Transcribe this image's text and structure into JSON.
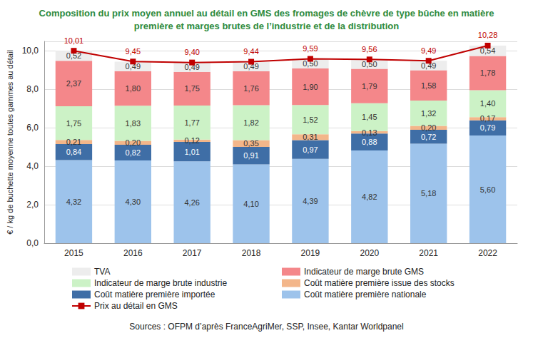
{
  "chart_data": {
    "type": "bar",
    "title": "Composition du prix moyen annuel au détail en GMS des fromages de chèvre de type bûche en matière\npremière et marges brutes de l’industrie et de la distribution",
    "y_label": "€ / kg de buchette moyenne toutes gammes au détail",
    "annotation": "Sources : OFPM d’après FranceAgriMer, SSP, Insee, Kantar Worldpanel",
    "categories": [
      "2015",
      "2016",
      "2017",
      "2018",
      "2019",
      "2020",
      "2021",
      "2022"
    ],
    "stacked": true,
    "data_labels": true,
    "grid": true,
    "legend": "bottom",
    "ylim": [
      0,
      10.5
    ],
    "yticks": [
      {
        "value": 0,
        "label": "0,0"
      },
      {
        "value": 2,
        "label": "2,0"
      },
      {
        "value": 4,
        "label": "4,0"
      },
      {
        "value": 6,
        "label": "6,0"
      },
      {
        "value": 8,
        "label": "8,0"
      },
      {
        "value": 10,
        "label": "10,0"
      }
    ],
    "series": [
      {
        "name": "Coût matière première nationale",
        "type": "bar",
        "color": "#9dc3eb",
        "values": [
          4.32,
          4.3,
          4.26,
          4.1,
          4.39,
          4.82,
          5.18,
          5.6
        ],
        "value_labels": [
          "4,32",
          "4,30",
          "4,26",
          "4,10",
          "4,39",
          "4,82",
          "5,18",
          "5,60"
        ]
      },
      {
        "name": "Coût matière première importée",
        "type": "bar",
        "color": "#3f6ea6",
        "values": [
          0.84,
          0.82,
          1.01,
          0.91,
          0.97,
          0.88,
          0.72,
          0.79
        ],
        "value_labels": [
          "0,84",
          "0,82",
          "1,01",
          "0,91",
          "0,97",
          "0,88",
          "0,72",
          "0,79"
        ]
      },
      {
        "name": "Coût matière première issue des stocks",
        "type": "bar",
        "color": "#f3b68a",
        "values": [
          0.21,
          0.2,
          0.12,
          0.35,
          0.31,
          0.13,
          0.2,
          0.17
        ],
        "value_labels": [
          "0,21",
          "0,20",
          "0,12",
          "0,35",
          "0,31",
          "0,13",
          "0,20",
          "0,17"
        ]
      },
      {
        "name": "Indicateur de marge brute industrie",
        "type": "bar",
        "color": "#ccf2c6",
        "values": [
          1.75,
          1.83,
          1.77,
          1.82,
          1.52,
          1.45,
          1.32,
          1.4
        ],
        "value_labels": [
          "1,75",
          "1,83",
          "1,77",
          "1,82",
          "1,52",
          "1,45",
          "1,32",
          "1,40"
        ]
      },
      {
        "name": "Indicateur de marge brute GMS",
        "type": "bar",
        "color": "#f4878a",
        "values": [
          2.37,
          1.8,
          1.75,
          1.76,
          1.9,
          1.79,
          1.58,
          1.78
        ],
        "value_labels": [
          "2,37",
          "1,80",
          "1,75",
          "1,76",
          "1,90",
          "1,79",
          "1,58",
          "1,78"
        ]
      },
      {
        "name": "TVA",
        "type": "bar",
        "color": "#ededed",
        "values": [
          0.52,
          0.49,
          0.49,
          0.49,
          0.5,
          0.5,
          0.49,
          0.54
        ],
        "value_labels": [
          "0,52",
          "0,49",
          "0,49",
          "0,49",
          "0,50",
          "0,50",
          "0,49",
          "0,54"
        ]
      },
      {
        "name": "Prix au détail en GMS",
        "type": "line",
        "color": "#c00000",
        "marker": "square",
        "values": [
          10.01,
          9.45,
          9.4,
          9.44,
          9.59,
          9.56,
          9.49,
          10.28
        ],
        "value_labels": [
          "10,01",
          "9,45",
          "9,40",
          "9,44",
          "9,59",
          "9,56",
          "9,49",
          "10,28"
        ]
      }
    ]
  }
}
